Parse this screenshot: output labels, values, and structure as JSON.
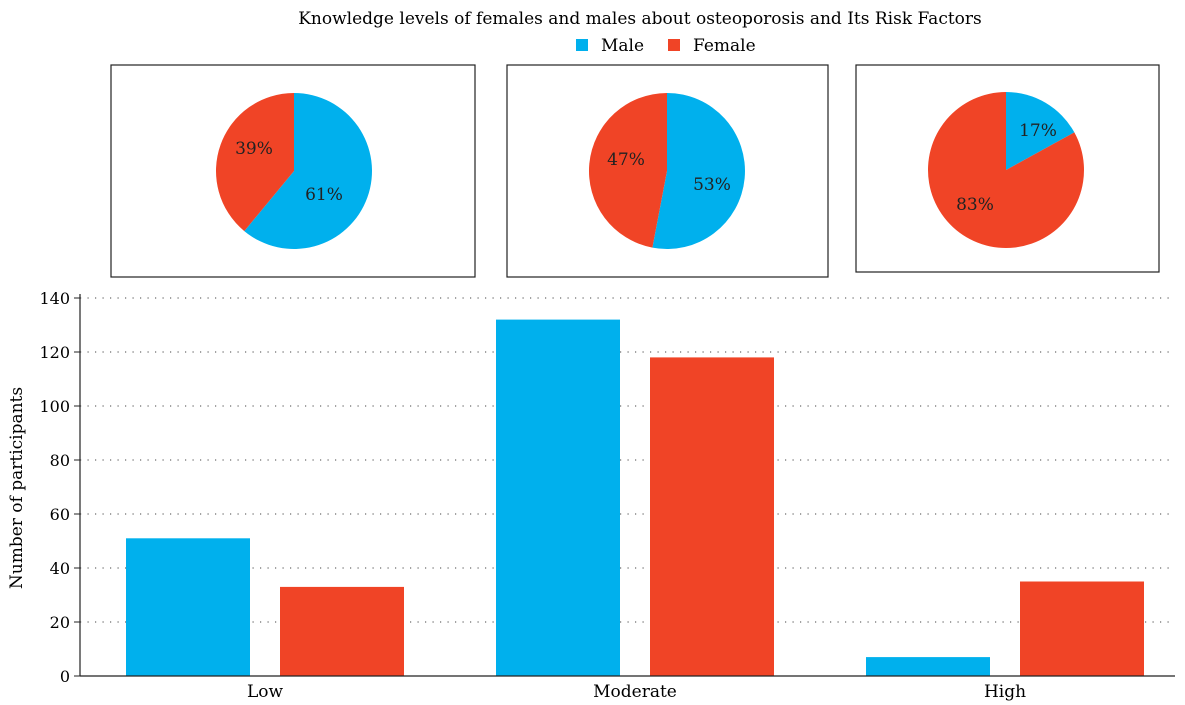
{
  "chart_data": [
    {
      "type": "pie",
      "category": "Low",
      "slices": [
        {
          "label": "Male",
          "value": 61,
          "text": "61%"
        },
        {
          "label": "Female",
          "value": 39,
          "text": "39%"
        }
      ]
    },
    {
      "type": "pie",
      "category": "Moderate",
      "slices": [
        {
          "label": "Male",
          "value": 53,
          "text": "53%"
        },
        {
          "label": "Female",
          "value": 47,
          "text": "47%"
        }
      ]
    },
    {
      "type": "pie",
      "category": "High",
      "slices": [
        {
          "label": "Male",
          "value": 17,
          "text": "17%"
        },
        {
          "label": "Female",
          "value": 83,
          "text": "83%"
        }
      ]
    },
    {
      "type": "bar",
      "title": "Knowledge levels of females and males about osteoporosis and Its Risk Factors",
      "categories": [
        "Low",
        "Moderate",
        "High"
      ],
      "series": [
        {
          "name": "Male",
          "values": [
            51,
            132,
            7
          ]
        },
        {
          "name": "Female",
          "values": [
            33,
            118,
            35
          ]
        }
      ],
      "ylabel": "Number of participants",
      "xlabel": "",
      "ylim": [
        0,
        140
      ],
      "yticks": [
        0,
        20,
        40,
        60,
        80,
        100,
        120,
        140
      ],
      "grid": true,
      "legend_position": "top-center"
    }
  ],
  "colors": {
    "Male": "#00b0ed",
    "Female": "#f04426"
  },
  "title": "Knowledge levels of females and males about osteoporosis and Its Risk Factors",
  "legend": [
    "Male",
    "Female"
  ]
}
